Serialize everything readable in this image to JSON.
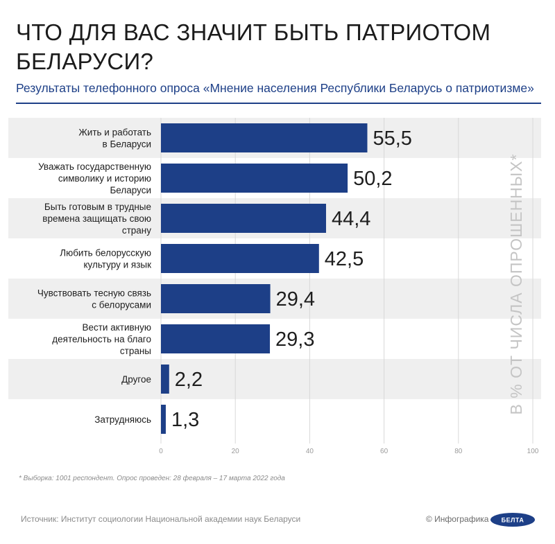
{
  "header": {
    "title": "ЧТО ДЛЯ ВАС ЗНАЧИТ БЫТЬ ПАТРИОТОМ БЕЛАРУСИ?",
    "subtitle": "Результаты телефонного опроса «Мнение населения Республики Беларусь о патриотизме»"
  },
  "colors": {
    "bar": "#1d3f87",
    "band": "#efefef",
    "accent": "#1d3f87",
    "logo": "#1d3f87"
  },
  "chart_data": {
    "type": "bar",
    "orientation": "horizontal",
    "categories": [
      [
        "Жить и работать",
        "в Беларуси"
      ],
      [
        "Уважать государственную",
        "символику и историю",
        "Беларуси"
      ],
      [
        "Быть готовым в трудные",
        "времена защищать свою",
        "страну"
      ],
      [
        "Любить белорусскую",
        "культуру и язык"
      ],
      [
        "Чувствовать тесную связь",
        "с белорусами"
      ],
      [
        "Вести активную",
        "деятельность на благо",
        "страны"
      ],
      [
        "Другое"
      ],
      [
        "Затрудняюсь"
      ]
    ],
    "values": [
      55.5,
      50.2,
      44.4,
      42.5,
      29.4,
      29.3,
      2.2,
      1.3
    ],
    "value_labels": [
      "55,5",
      "50,2",
      "44,4",
      "42,5",
      "29,4",
      "29,3",
      "2,2",
      "1,3"
    ],
    "xlim": [
      0,
      100
    ],
    "ticks": [
      0,
      20,
      40,
      60,
      80,
      100
    ],
    "ylabel": "В % ОТ ЧИСЛА ОПРОШЕННЫХ*",
    "grid": true,
    "alternating_bands": true
  },
  "footer": {
    "footnote": "* Выборка: 1001 респондент. Опрос проведен: 28 февраля – 17 марта 2022 года",
    "source": "Источник: Институт социологии Национальной академии наук Беларуси",
    "credit": "© Инфографика",
    "logo_text": "БЕЛТА"
  }
}
